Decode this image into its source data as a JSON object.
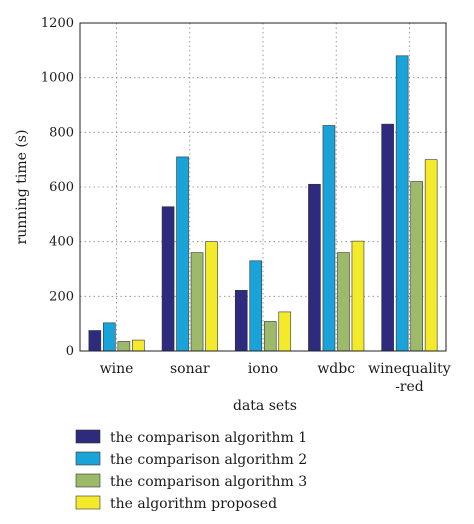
{
  "chart_data": {
    "type": "bar",
    "xlabel": "data sets",
    "ylabel": "running time (s)",
    "ylim": [
      0,
      1200
    ],
    "yticks": [
      0,
      200,
      400,
      600,
      800,
      1000,
      1200
    ],
    "grid": true,
    "legend_position": "bottom",
    "categories": [
      {
        "line1": "wine",
        "line2": ""
      },
      {
        "line1": "sonar",
        "line2": ""
      },
      {
        "line1": "iono",
        "line2": ""
      },
      {
        "line1": "wdbc",
        "line2": ""
      },
      {
        "line1": "winequality",
        "line2": "-red"
      }
    ],
    "series": [
      {
        "name": "the comparison algorithm 1",
        "color": "#2e2a7d",
        "values": [
          75,
          528,
          222,
          610,
          830
        ]
      },
      {
        "name": "the comparison algorithm 2",
        "color": "#1aa3d9",
        "values": [
          103,
          710,
          330,
          825,
          1080
        ]
      },
      {
        "name": "the comparison algorithm 3",
        "color": "#9dba6a",
        "values": [
          35,
          360,
          108,
          360,
          620
        ]
      },
      {
        "name": "the algorithm proposed",
        "color": "#f2ea2a",
        "values": [
          40,
          400,
          143,
          402,
          700
        ]
      }
    ]
  }
}
